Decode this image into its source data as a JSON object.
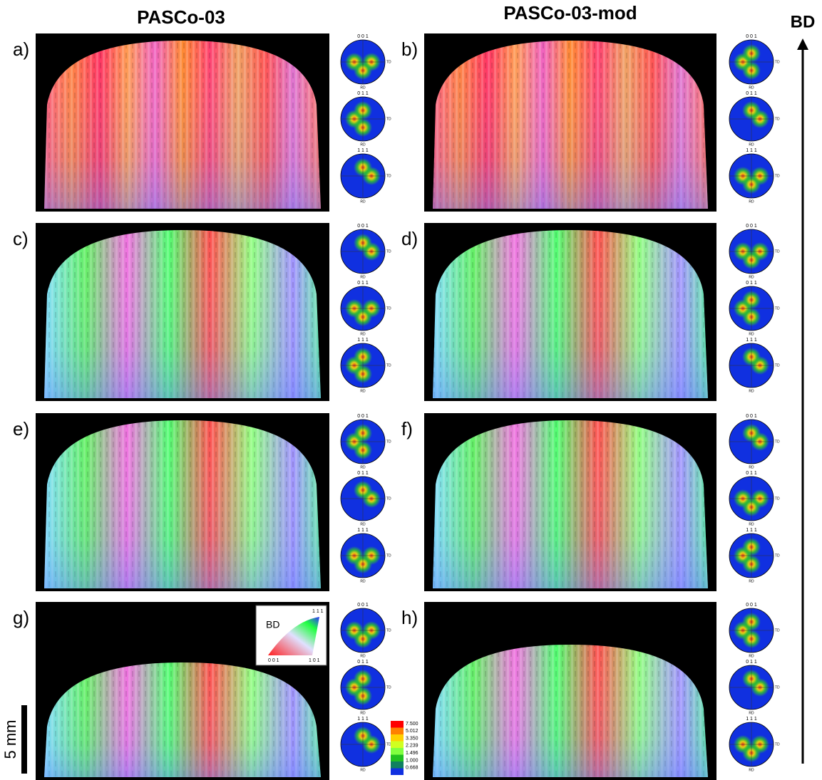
{
  "columns": [
    "PASCo-03",
    "PASCo-03-mod"
  ],
  "panels": [
    {
      "label": "a)"
    },
    {
      "label": "b)"
    },
    {
      "label": "c)"
    },
    {
      "label": "d)"
    },
    {
      "label": "e)"
    },
    {
      "label": "f)"
    },
    {
      "label": "g)"
    },
    {
      "label": "h)"
    }
  ],
  "pole_figure": {
    "planes": [
      "0 0 1",
      "0 1 1",
      "1 1 1"
    ],
    "td": "TD",
    "rd": "RD"
  },
  "ipf_legend": {
    "direction": "BD",
    "corners": [
      "0 0 1",
      "1 0 1",
      "1 1 1"
    ]
  },
  "color_scale": {
    "labels": [
      "7.500",
      "5.012",
      "3.350",
      "2.239",
      "1.496",
      "1.000",
      "0.668"
    ]
  },
  "build_direction": "BD",
  "scale_bar": "5 mm"
}
